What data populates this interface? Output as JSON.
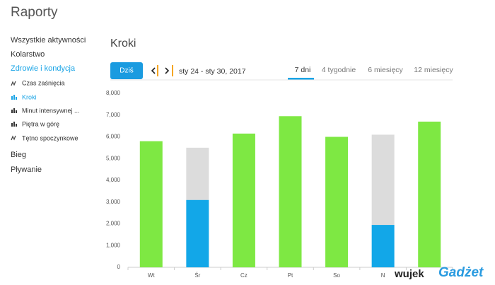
{
  "header": {
    "title": "Raporty"
  },
  "sidebar": {
    "items": [
      "Wszystkie aktywności",
      "Kolarstwo",
      "Zdrowie i kondycja"
    ],
    "subitems": [
      "Czas zaśnięcia",
      "Kroki",
      "Minut intensywnej ...",
      "Piętra w górę",
      "Tętno spoczynkowe"
    ],
    "more": [
      "Bieg",
      "Pływanie"
    ]
  },
  "toolbar": {
    "today": "Dziś",
    "range": "sty 24 - sty 30, 2017",
    "tabs": [
      "7 dni",
      "4 tygodnie",
      "6 miesięcy",
      "12 miesięcy"
    ]
  },
  "watermark": [
    "wujek",
    "Gadżet"
  ],
  "chart_data": {
    "type": "bar",
    "stacked": true,
    "title": "Kroki",
    "categories": [
      "Wt",
      "Śr",
      "Cz",
      "Pt",
      "So",
      "N",
      null
    ],
    "series": [
      {
        "values": [
          5800,
          3100,
          6150,
          6950,
          6000,
          1950,
          6700
        ],
        "colors": [
          "#7ee843",
          "#12a7e8",
          "#7ee843",
          "#7ee843",
          "#7ee843",
          "#12a7e8",
          "#7ee843"
        ]
      },
      {
        "color": "#dcdcdc",
        "values": [
          null,
          2400,
          null,
          null,
          null,
          4150,
          null
        ]
      }
    ],
    "ylim": [
      0,
      8000
    ],
    "yticks": [
      0,
      {
        "value": 1000,
        "label": "1,000"
      },
      {
        "value": 2000,
        "label": "2,000"
      },
      {
        "value": 3000,
        "label": "3,000"
      },
      {
        "value": 4000,
        "label": "4,000"
      },
      {
        "value": 5000,
        "label": "5,000"
      },
      {
        "value": 6000,
        "label": "6,000"
      },
      {
        "value": 7000,
        "label": "7,000"
      },
      {
        "value": 8000,
        "label": "8,000"
      }
    ],
    "grid": false
  }
}
